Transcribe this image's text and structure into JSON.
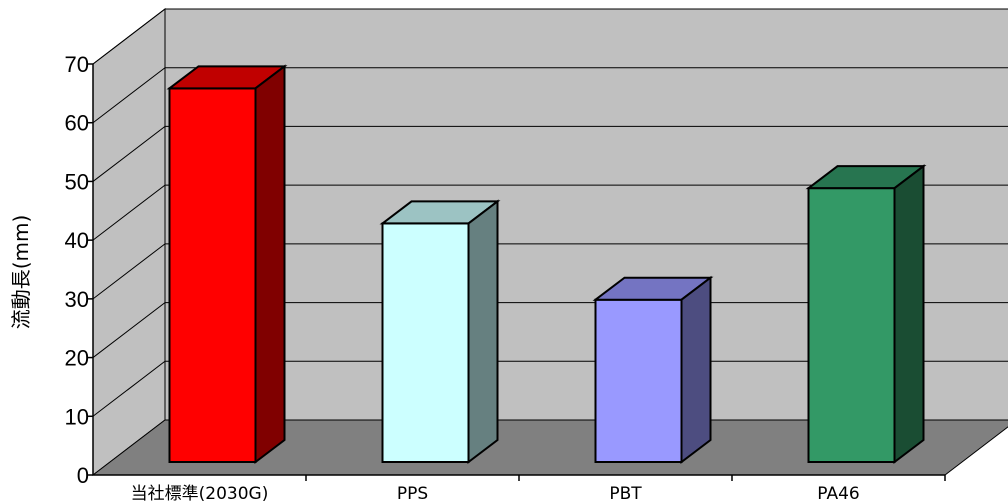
{
  "chart_data": {
    "type": "bar",
    "categories": [
      "当社標準(2030G)",
      "PPS",
      "PBT",
      "PA46"
    ],
    "values": [
      65,
      42,
      29,
      48
    ],
    "ylabel": "流動長(mm)",
    "xlabel": "",
    "ylim": [
      0,
      70
    ],
    "yticks": [
      0,
      10,
      20,
      30,
      40,
      50,
      60,
      70
    ],
    "grid": true,
    "style": "3d-column",
    "legend": "none",
    "colors": {
      "bars": [
        {
          "front": "#ff0000",
          "top": "#c00000",
          "side": "#800000"
        },
        {
          "front": "#ccffff",
          "top": "#9cc3c3",
          "side": "#668080"
        },
        {
          "front": "#9999ff",
          "top": "#7474c2",
          "side": "#4d4d80"
        },
        {
          "front": "#339966",
          "top": "#277550",
          "side": "#1a4d33"
        }
      ],
      "back_wall": "#c0c0c0",
      "side_wall": "#c0c0c0",
      "floor": "#808080",
      "gridline": "#000000"
    }
  }
}
